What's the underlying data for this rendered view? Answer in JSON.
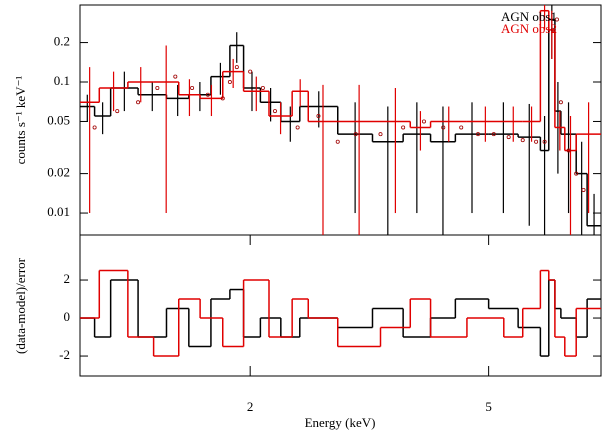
{
  "chart_data": [
    {
      "type": "step",
      "ylabel": "counts s⁻¹ keV⁻¹",
      "log_y": true,
      "log_x": true,
      "xlim": [
        1.04,
        7.7
      ],
      "ylim": [
        0.0068,
        0.387
      ],
      "yticks": [
        0.01,
        0.02,
        0.05,
        0.1,
        0.2
      ],
      "legend": "upper right",
      "series": [
        {
          "name": "AGN obs1",
          "color": "#000000",
          "bins": [
            1.04,
            1.1,
            1.17,
            1.3,
            1.45,
            1.58,
            1.72,
            1.85,
            1.95,
            2.08,
            2.25,
            2.42,
            2.8,
            3.2,
            3.6,
            4.0,
            4.4,
            5.0,
            5.6,
            6.1,
            6.3,
            6.45,
            6.6,
            7.0,
            7.3,
            7.7
          ],
          "values": [
            0.065,
            0.055,
            0.09,
            0.08,
            0.075,
            0.08,
            0.11,
            0.19,
            0.09,
            0.07,
            0.05,
            0.065,
            0.04,
            0.035,
            0.04,
            0.035,
            0.04,
            0.04,
            0.038,
            0.03,
            0.3,
            0.06,
            0.04,
            0.02,
            0.008
          ],
          "errors": [
            0.015,
            0.015,
            0.03,
            0.02,
            0.02,
            0.02,
            0.03,
            0.05,
            0.03,
            0.02,
            0.015,
            0.02,
            0.03,
            0.03,
            0.03,
            0.03,
            0.03,
            0.03,
            0.03,
            0.025,
            0.15,
            0.04,
            0.03,
            0.015,
            0.006
          ]
        },
        {
          "name": "AGN obs2",
          "color": "#e00000",
          "bins": [
            1.04,
            1.12,
            1.25,
            1.38,
            1.52,
            1.65,
            1.8,
            1.95,
            2.15,
            2.35,
            2.5,
            2.8,
            3.3,
            3.7,
            4.0,
            4.6,
            5.3,
            5.7,
            6.1,
            6.3,
            6.45,
            6.7,
            7.0,
            7.7
          ],
          "values": [
            0.07,
            0.09,
            0.1,
            0.1,
            0.08,
            0.075,
            0.12,
            0.085,
            0.055,
            0.085,
            0.05,
            0.05,
            0.05,
            0.045,
            0.05,
            0.05,
            0.05,
            0.05,
            0.35,
            0.25,
            0.045,
            0.03,
            0.04
          ],
          "errors": [
            0.06,
            0.03,
            0.03,
            0.09,
            0.025,
            0.02,
            0.03,
            0.025,
            0.015,
            0.02,
            0.045,
            0.045,
            0.04,
            0.015,
            0.015,
            0.015,
            0.015,
            0.015,
            0.1,
            0.1,
            0.015,
            0.025,
            0.03
          ]
        }
      ],
      "model": {
        "color": "#a00000",
        "x": [
          1.1,
          1.2,
          1.3,
          1.4,
          1.5,
          1.6,
          1.7,
          1.8,
          1.85,
          1.9,
          2.0,
          2.1,
          2.2,
          2.4,
          2.6,
          2.8,
          3.0,
          3.3,
          3.6,
          3.9,
          4.2,
          4.5,
          4.8,
          5.1,
          5.4,
          5.7,
          6.0,
          6.2,
          6.4,
          6.5,
          6.6,
          6.8,
          7.0,
          7.2
        ],
        "values": [
          0.045,
          0.06,
          0.07,
          0.09,
          0.11,
          0.09,
          0.08,
          0.075,
          0.1,
          0.13,
          0.12,
          0.09,
          0.06,
          0.045,
          0.055,
          0.035,
          0.04,
          0.04,
          0.045,
          0.05,
          0.045,
          0.045,
          0.04,
          0.04,
          0.038,
          0.036,
          0.035,
          0.035,
          0.25,
          0.3,
          0.07,
          0.03,
          0.02,
          0.015
        ]
      }
    },
    {
      "type": "step",
      "ylabel": "(data-model)/error",
      "xlabel": "Energy (keV)",
      "log_x": true,
      "xlim": [
        1.04,
        7.7
      ],
      "xticks": [
        2,
        5
      ],
      "ylim": [
        -3.05,
        4.37
      ],
      "yticks": [
        2,
        0,
        -2
      ],
      "series": [
        {
          "name": "AGN obs1",
          "color": "#000000",
          "bins": [
            1.04,
            1.1,
            1.17,
            1.3,
            1.45,
            1.58,
            1.72,
            1.85,
            1.95,
            2.08,
            2.25,
            2.42,
            2.8,
            3.2,
            3.6,
            4.0,
            4.4,
            5.0,
            5.6,
            6.1,
            6.3,
            6.45,
            6.6,
            7.0,
            7.3,
            7.7
          ],
          "values": [
            0,
            -1,
            2,
            -1,
            0.5,
            -1.5,
            1,
            1.5,
            -1,
            0,
            -1,
            0,
            -0.5,
            0.5,
            -1,
            0,
            1,
            0.5,
            -0.5,
            -2,
            2,
            0.5,
            0,
            -1,
            1
          ]
        },
        {
          "name": "AGN obs2",
          "color": "#e00000",
          "bins": [
            1.04,
            1.12,
            1.25,
            1.38,
            1.52,
            1.65,
            1.8,
            1.95,
            2.15,
            2.35,
            2.5,
            2.8,
            3.3,
            3.7,
            4.0,
            4.6,
            5.3,
            5.7,
            6.1,
            6.3,
            6.45,
            6.7,
            7.0,
            7.7
          ],
          "values": [
            0,
            2.5,
            -1,
            -2,
            1,
            0,
            -1.5,
            2,
            -1,
            1,
            0,
            -1.5,
            -0.5,
            1,
            -1,
            0,
            -1,
            0.5,
            2.5,
            2,
            -1,
            -2,
            0.5
          ]
        }
      ]
    }
  ]
}
